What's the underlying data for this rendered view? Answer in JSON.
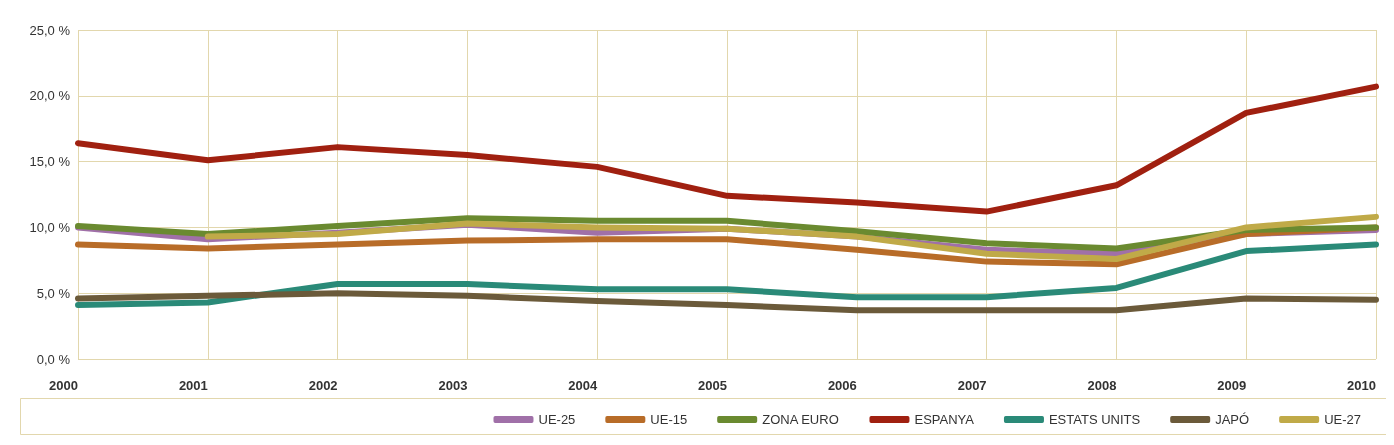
{
  "chart_data": {
    "type": "line",
    "categories": [
      "2000",
      "2001",
      "2002",
      "2003",
      "2004",
      "2005",
      "2006",
      "2007",
      "2008",
      "2009",
      "2010"
    ],
    "ylim": [
      0,
      25
    ],
    "yticks": [
      {
        "value": 0,
        "label": "0,0 %"
      },
      {
        "value": 5,
        "label": "5,0 %"
      },
      {
        "value": 10,
        "label": "10,0 %"
      },
      {
        "value": 15,
        "label": "15,0 %"
      },
      {
        "value": 20,
        "label": "20,0 %"
      },
      {
        "value": 25,
        "label": "25,0 %"
      }
    ],
    "grid": true,
    "legend": "bottom right",
    "marker": "none",
    "line_style": "solid",
    "series": [
      {
        "name": "UE-25",
        "color": "#a070a8",
        "values": [
          10.0,
          9.1,
          9.6,
          10.2,
          9.6,
          9.9,
          9.3,
          8.3,
          8.0,
          9.5,
          9.8
        ]
      },
      {
        "name": "UE-15",
        "color": "#b86c28",
        "values": [
          8.7,
          8.4,
          8.7,
          9.0,
          9.1,
          9.1,
          8.3,
          7.4,
          7.2,
          9.5,
          10.0
        ]
      },
      {
        "name": "ZONA EURO",
        "color": "#6a8a30",
        "values": [
          10.1,
          9.5,
          10.1,
          10.7,
          10.5,
          10.5,
          9.7,
          8.8,
          8.4,
          9.8,
          10.0
        ]
      },
      {
        "name": "ESPANYA",
        "color": "#a02010",
        "values": [
          16.4,
          15.1,
          16.1,
          15.5,
          14.6,
          12.4,
          11.9,
          11.2,
          13.2,
          18.7,
          20.7
        ]
      },
      {
        "name": "ESTATS UNITS",
        "color": "#2a8a78",
        "values": [
          4.1,
          4.3,
          5.7,
          5.7,
          5.3,
          5.3,
          4.7,
          4.7,
          5.4,
          8.2,
          8.7
        ]
      },
      {
        "name": "JAPÓ",
        "color": "#6b5a3a",
        "values": [
          4.6,
          4.8,
          5.0,
          4.8,
          4.4,
          4.1,
          3.7,
          3.7,
          3.7,
          4.6,
          4.5
        ]
      },
      {
        "name": "UE-27",
        "color": "#c0aa48",
        "values": [
          null,
          9.3,
          9.5,
          10.3,
          10.0,
          9.9,
          9.3,
          8.0,
          7.6,
          10.0,
          10.8
        ]
      }
    ]
  }
}
